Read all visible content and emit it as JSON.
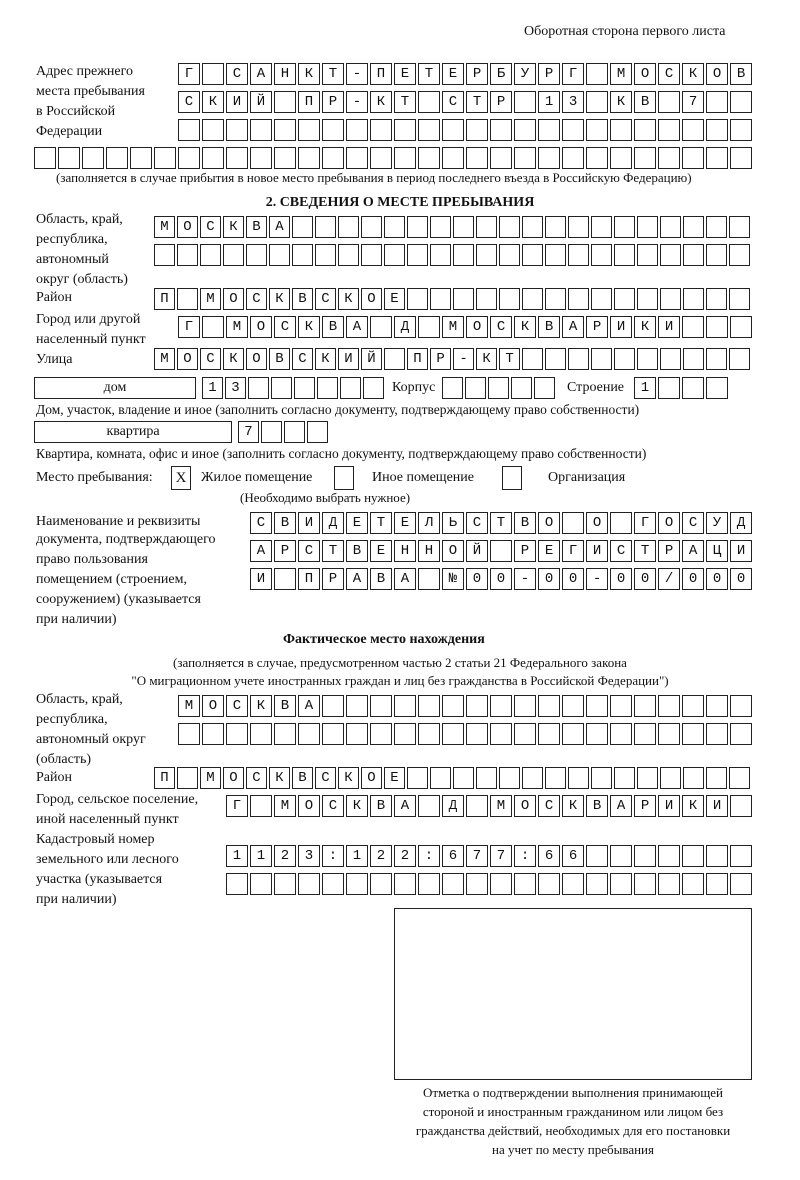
{
  "header": {
    "title": "Оборотная сторона первого листа"
  },
  "previous_address": {
    "label": [
      "Адрес прежнего",
      "места пребывания",
      "в Российской",
      "Федерации"
    ],
    "rows": [
      "Г САНКТ-ПЕТЕРБУРГ МОСКОВ",
      "СКИЙ ПР-КТ СТР 13 КВ 7  ",
      "                        ",
      "                              "
    ],
    "note": "(заполняется в случае прибытия в новое место пребывания в период последнего въезда в Российскую Федерацию)"
  },
  "section2": {
    "title": "2. СВЕДЕНИЯ О МЕСТЕ ПРЕБЫВАНИЯ",
    "region_label": [
      "Область, край,",
      "республика,",
      "автономный",
      "округ (область)"
    ],
    "region_rows": [
      "МОСКВА                    ",
      "                          "
    ],
    "district_label": "Район",
    "district_row": "П МОСКВСКОЕ               ",
    "city_label": [
      "Город или другой",
      "населенный пункт"
    ],
    "city_row": "Г МОСКВА Д МОСКВАРИКИ   ",
    "street_label": "Улица",
    "street_row": "МОСКОВСКИЙ ПР-КТ          ",
    "house_type": "дом",
    "house_row": "13      ",
    "building_label": "Корпус",
    "building_row": "     ",
    "structure_label": "Строение",
    "structure_row": "1   ",
    "house_note": "Дом, участок, владение и иное (заполнить согласно документу, подтверждающему право собственности)",
    "apartment_type": "квартира",
    "apartment_row": "7   ",
    "apartment_note": "Квартира, комната, офис и иное (заполнить согласно документу, подтверждающему право собственности)",
    "stay_label": "Место пребывания:",
    "options": [
      {
        "label": "Жилое помещение",
        "mark": "X"
      },
      {
        "label": "Иное помещение",
        "mark": ""
      },
      {
        "label": "Организация",
        "mark": ""
      }
    ],
    "choose_note": "(Необходимо выбрать нужное)",
    "doc_label": [
      "Наименование и реквизиты",
      "документа, подтверждающего",
      "право пользования",
      "помещением (строением,",
      "сооружением) (указывается",
      "при наличии)"
    ],
    "doc_rows": [
      "СВИДЕТЕЛЬСТВО О ГОСУД",
      "АРСТВЕННОЙ РЕГИСТРАЦИ",
      "И ПРАВА №00-00-00/000"
    ]
  },
  "actual": {
    "title": "Фактическое место нахождения",
    "note1": "(заполняется в случае, предусмотренном частью 2 статьи 21 Федерального закона",
    "note2": "\"О миграционном учете иностранных граждан и лиц без гражданства в Российской Федерации\")",
    "region_label": [
      "Область, край,",
      "республика,",
      "автономный округ",
      "(область)"
    ],
    "region_rows": [
      "МОСКВА                  ",
      "                        "
    ],
    "district_label": "Район",
    "district_row": "П МОСКВСКОЕ               ",
    "city_label": [
      "Город, сельское поселение,",
      "иной населенный пункт"
    ],
    "city_row": "Г МОСКВА Д МОСКВАРИКИ ",
    "cadastral_label": [
      "Кадастровый номер",
      "земельного или лесного",
      "участка (указывается",
      "при наличии)"
    ],
    "cadastral_rows": [
      "1123:122:677:66       ",
      "                      "
    ]
  },
  "confirmation": {
    "caption": [
      "Отметка о подтверждении выполнения принимающей",
      "стороной и иностранным гражданином или лицом без",
      "гражданства действий, необходимых для его постановки",
      "на учет по месту пребывания"
    ]
  }
}
